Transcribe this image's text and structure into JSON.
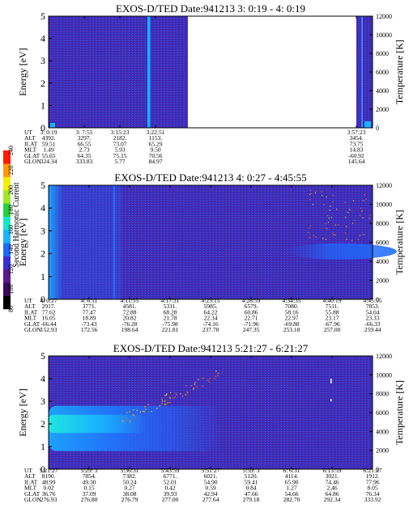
{
  "figure": {
    "colorbar": {
      "label": "Second Harmonic Current",
      "ticks": [
        "80",
        "100",
        "120",
        "140",
        "160",
        "180",
        "200",
        "220",
        "240"
      ],
      "colors": [
        "#000000",
        "#3b0a5a",
        "#5a1a8a",
        "#3a2fd0",
        "#1f6bff",
        "#19b4ff",
        "#19e6c8",
        "#23d23c",
        "#a0e628",
        "#f0f000",
        "#ff9a00",
        "#ff1a00"
      ]
    }
  },
  "chart_data": [
    {
      "type": "heatmap",
      "title": "EXOS-D/TED   Date:941213  3: 0:19 - 4: 0:19",
      "ylabel": "Energy [eV]",
      "ylabel_right": "Temperature [K]",
      "ylim": [
        0,
        5
      ],
      "yticks": [
        "0",
        "1",
        "2",
        "3",
        "4",
        "5"
      ],
      "ylim_right": [
        0,
        12000
      ],
      "yticks_right": [
        "0",
        "2000",
        "4000",
        "6000",
        "8000",
        "10000",
        "12000"
      ],
      "xticks": [
        "3: 0:19",
        "3: 7:55",
        "3:15:23",
        "3:22:51",
        "3:57:23"
      ],
      "data_gap": "after 3:22:51 until 3:57:23",
      "orbit_rows": [
        {
          "name": "UT",
          "values": [
            "3: 0:19",
            "3: 7:55",
            "3:15:23",
            "3:22:51",
            "3:57:23"
          ]
        },
        {
          "name": "ALT",
          "values": [
            "4392.",
            "3297.",
            "2182.",
            "1153.",
            "3454."
          ]
        },
        {
          "name": "ILAT",
          "values": [
            "59.51",
            "66.55",
            "73.07",
            "65.29",
            "73.75"
          ]
        },
        {
          "name": "MLT",
          "values": [
            "1.49",
            "2.73",
            "5.93",
            "9.50",
            "14.83"
          ]
        },
        {
          "name": "GLAT",
          "values": [
            "55.65",
            "64.35",
            "75.15",
            "70.56",
            "-60.92"
          ]
        },
        {
          "name": "GLON",
          "values": [
            "324.34",
            "333.83",
            "5.77",
            "84.97",
            "145.64"
          ]
        }
      ]
    },
    {
      "type": "heatmap",
      "title": "EXOS-D/TED   Date:941213  4: 0:27 - 4:45:55",
      "ylabel": "Energy [eV]",
      "ylabel_right": "Temperature [K]",
      "ylim": [
        0,
        5
      ],
      "yticks": [
        "0",
        "1",
        "2",
        "3",
        "4",
        "5"
      ],
      "ylim_right": [
        0,
        12000
      ],
      "yticks_right": [
        "0",
        "2000",
        "4000",
        "6000",
        "8000",
        "10000",
        "12000"
      ],
      "xticks": [
        "4: 0:27",
        "4: 6:11",
        "4:11:55",
        "4:17:31",
        "4:23:15",
        "4:28:59",
        "4:34:35",
        "4:40:19",
        "4:45:55"
      ],
      "orbit_rows": [
        {
          "name": "UT",
          "values": [
            "4: 0:27",
            "4: 6:11",
            "4:11:55",
            "4:17:31",
            "4:23:15",
            "4:28:59",
            "4:34:35",
            "4:40:19",
            "4:45:55"
          ]
        },
        {
          "name": "ALT",
          "values": [
            "2917.",
            "3771.",
            "4581.",
            "5311.",
            "5985.",
            "6579.",
            "7080.",
            "7511.",
            "7853."
          ]
        },
        {
          "name": "ILAT",
          "values": [
            "77.62",
            "77.47",
            "72.88",
            "68.28",
            "64.22",
            "60.86",
            "58.16",
            "55.88",
            "54.04"
          ]
        },
        {
          "name": "MLT",
          "values": [
            "16.05",
            "18.89",
            "20.82",
            "21.78",
            "22.34",
            "22.71",
            "22.97",
            "23.17",
            "23.33"
          ]
        },
        {
          "name": "GLAT",
          "values": [
            "-66.44",
            "-73.43",
            "-76.28",
            "-75.98",
            "-74.16",
            "-71.96",
            "-69.88",
            "-67.96",
            "-66.33"
          ]
        },
        {
          "name": "GLON",
          "values": [
            "152.93",
            "172.56",
            "198.64",
            "221.81",
            "237.70",
            "247.35",
            "253.18",
            "257.00",
            "259.44"
          ]
        }
      ]
    },
    {
      "type": "heatmap",
      "title": "EXOS-D/TED   Date:941213  5:21:27 - 6:21:27",
      "ylabel": "Energy [eV]",
      "ylabel_right": "Temperature [K]",
      "ylim": [
        0,
        5
      ],
      "yticks": [
        "0",
        "1",
        "2",
        "3",
        "4",
        "5"
      ],
      "ylim_right": [
        0,
        12000
      ],
      "yticks_right": [
        "0",
        "2000",
        "4000",
        "6000",
        "8000",
        "10000",
        "12000"
      ],
      "xticks": [
        "5:21:27",
        "5:29: 3",
        "5:36:31",
        "5:43:59",
        "5:51:27",
        "5:59: 3",
        "6: 6:31",
        "6:13:59",
        "6:21:27"
      ],
      "orbit_rows": [
        {
          "name": "UT",
          "values": [
            "5:21:27",
            "5:29: 3",
            "5:36:31",
            "5:43:59",
            "5:51:27",
            "5:59: 3",
            "6: 6:31",
            "6:13:59",
            "6:21:27"
          ]
        },
        {
          "name": "ALT",
          "values": [
            "8190.",
            "7854.",
            "7382.",
            "6771.",
            "6021.",
            "5120.",
            "4114.",
            "3021.",
            "1912."
          ]
        },
        {
          "name": "ILAT",
          "values": [
            "48.99",
            "49.30",
            "50.24",
            "52.01",
            "54.90",
            "59.41",
            "65.90",
            "74.46",
            "77.96"
          ]
        },
        {
          "name": "MLT",
          "values": [
            "0.02",
            "0.15",
            "0.27",
            "0.42",
            "0.59",
            "0.84",
            "1.27",
            "2.46",
            "8.05"
          ]
        },
        {
          "name": "GLAT",
          "values": [
            "36.76",
            "37.09",
            "38.08",
            "39.93",
            "42.94",
            "47.66",
            "54.66",
            "64.86",
            "76.34"
          ]
        },
        {
          "name": "GLON",
          "values": [
            "276.93",
            "276.80",
            "276.79",
            "277.00",
            "277.64",
            "279.18",
            "282.70",
            "292.34",
            "333.92"
          ]
        }
      ]
    }
  ]
}
